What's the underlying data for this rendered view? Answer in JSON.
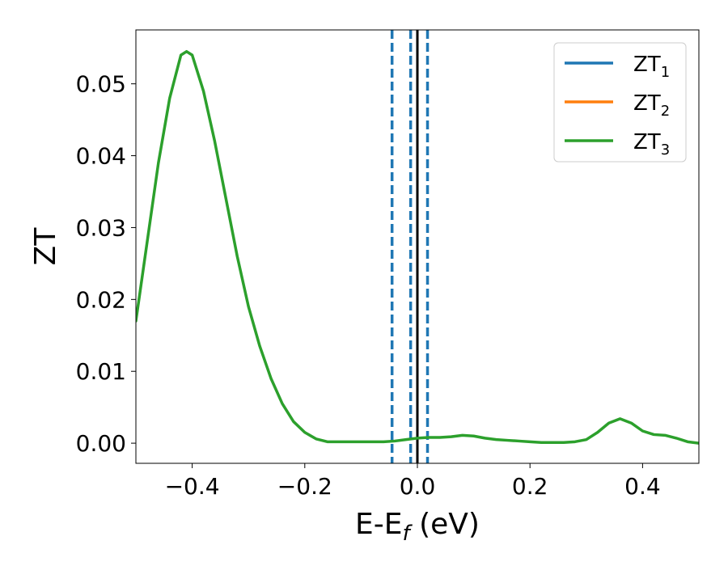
{
  "chart_data": {
    "type": "line",
    "xlabel": {
      "main": "E-E",
      "sub": "f",
      "suffix": " (eV)"
    },
    "ylabel": "ZT",
    "xlim": [
      -0.5,
      0.5
    ],
    "ylim": [
      -0.0028,
      0.0575
    ],
    "xticks": [
      -0.4,
      -0.2,
      0.0,
      0.2,
      0.4
    ],
    "xtick_labels": [
      "−0.4",
      "−0.2",
      "0.0",
      "0.2",
      "0.4"
    ],
    "yticks": [
      0.0,
      0.01,
      0.02,
      0.03,
      0.04,
      0.05
    ],
    "ytick_labels": [
      "0.00",
      "0.01",
      "0.02",
      "0.03",
      "0.04",
      "0.05"
    ],
    "legend_position": "top-right",
    "series": [
      {
        "name": "ZT",
        "subscript": "1",
        "color": "#1f77b4",
        "x": [],
        "y": []
      },
      {
        "name": "ZT",
        "subscript": "2",
        "color": "#ff7f0e",
        "x": [],
        "y": []
      },
      {
        "name": "ZT",
        "subscript": "3",
        "color": "#2ca02c",
        "x": [
          -0.5,
          -0.48,
          -0.46,
          -0.44,
          -0.42,
          -0.41,
          -0.4,
          -0.38,
          -0.36,
          -0.34,
          -0.32,
          -0.3,
          -0.28,
          -0.26,
          -0.24,
          -0.22,
          -0.2,
          -0.18,
          -0.16,
          -0.14,
          -0.12,
          -0.1,
          -0.08,
          -0.06,
          -0.04,
          -0.02,
          0.0,
          0.02,
          0.04,
          0.06,
          0.08,
          0.1,
          0.12,
          0.14,
          0.16,
          0.18,
          0.2,
          0.22,
          0.24,
          0.26,
          0.28,
          0.3,
          0.32,
          0.34,
          0.36,
          0.38,
          0.4,
          0.42,
          0.44,
          0.46,
          0.48,
          0.5
        ],
        "y": [
          0.017,
          0.028,
          0.039,
          0.048,
          0.054,
          0.0545,
          0.054,
          0.049,
          0.042,
          0.034,
          0.026,
          0.019,
          0.0135,
          0.009,
          0.0055,
          0.003,
          0.0015,
          0.0006,
          0.0002,
          0.0002,
          0.0002,
          0.0002,
          0.0002,
          0.0002,
          0.0003,
          0.0005,
          0.0007,
          0.0008,
          0.0008,
          0.0009,
          0.0011,
          0.001,
          0.0007,
          0.0005,
          0.0004,
          0.0003,
          0.0002,
          0.0001,
          0.0001,
          0.0001,
          0.0002,
          0.0005,
          0.0015,
          0.0028,
          0.0034,
          0.0028,
          0.0017,
          0.0012,
          0.0011,
          0.0007,
          0.0002,
          0.0
        ]
      }
    ],
    "vlines": [
      {
        "x": 0.0,
        "style": "solid",
        "color": "#000000"
      },
      {
        "x": -0.045,
        "style": "dashed",
        "color": "#1f77b4"
      },
      {
        "x": -0.012,
        "style": "dashed",
        "color": "#1f77b4"
      },
      {
        "x": 0.018,
        "style": "dashed",
        "color": "#1f77b4"
      }
    ],
    "grid": false
  }
}
